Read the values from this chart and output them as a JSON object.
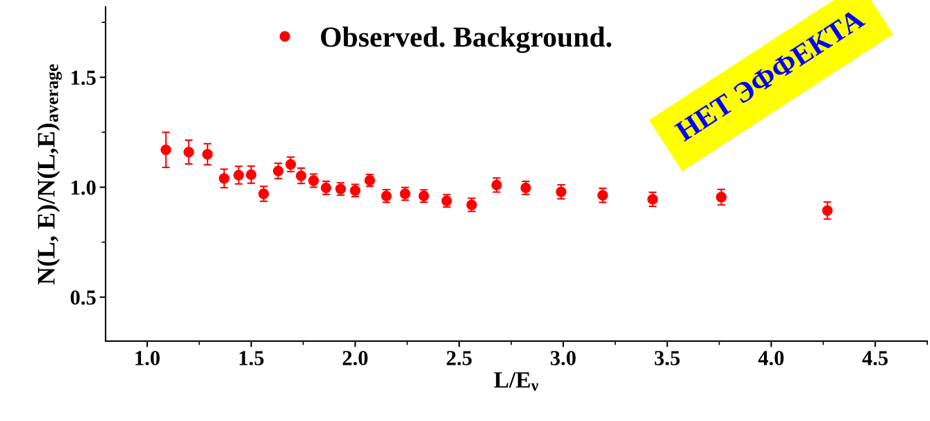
{
  "chart_data": {
    "type": "scatter",
    "xlabel": "L/E$_{ν}$",
    "ylabel": "N(L, E)/N(L,E)$_{average}$",
    "xlim": [
      0.8,
      4.75
    ],
    "xticks": [
      {
        "value": 1.0,
        "label": "1.0"
      },
      {
        "value": 1.5,
        "label": "1.5"
      },
      {
        "value": 2.0,
        "label": "2.0"
      },
      {
        "value": 2.5,
        "label": "2.5"
      },
      {
        "value": 3.0,
        "label": "3.0"
      },
      {
        "value": 3.5,
        "label": "3.5"
      },
      {
        "value": 4.0,
        "label": "4.0"
      },
      {
        "value": 4.5,
        "label": "4.5"
      }
    ],
    "ylim": [
      0.3,
      1.82
    ],
    "yticks": [
      0.5,
      {
        "value": 1.0,
        "label": "1.0"
      },
      1.5
    ],
    "grid": false,
    "legend": "top",
    "marker": "circle",
    "annotations": [
      "НЕТ ЭФФЕКТА"
    ],
    "series": [
      {
        "name": "Observed. Background.",
        "color": "#ff0000",
        "x": [
          1.09,
          1.2,
          1.29,
          1.37,
          1.44,
          1.5,
          1.56,
          1.63,
          1.69,
          1.74,
          1.8,
          1.86,
          1.93,
          2.0,
          2.07,
          2.15,
          2.24,
          2.33,
          2.44,
          2.56,
          2.68,
          2.82,
          2.99,
          3.19,
          3.43,
          3.76,
          4.27
        ],
        "values": [
          1.17,
          1.16,
          1.15,
          1.04,
          1.055,
          1.057,
          0.97,
          1.074,
          1.104,
          1.052,
          1.03,
          0.997,
          0.992,
          0.985,
          1.031,
          0.96,
          0.97,
          0.96,
          0.938,
          0.92,
          1.01,
          0.997,
          0.979,
          0.963,
          0.945,
          0.955,
          0.894
        ],
        "errors": [
          0.08,
          0.054,
          0.048,
          0.042,
          0.04,
          0.039,
          0.034,
          0.035,
          0.033,
          0.035,
          0.03,
          0.03,
          0.028,
          0.028,
          0.027,
          0.029,
          0.029,
          0.028,
          0.028,
          0.03,
          0.032,
          0.03,
          0.032,
          0.032,
          0.032,
          0.035,
          0.039
        ]
      }
    ]
  }
}
